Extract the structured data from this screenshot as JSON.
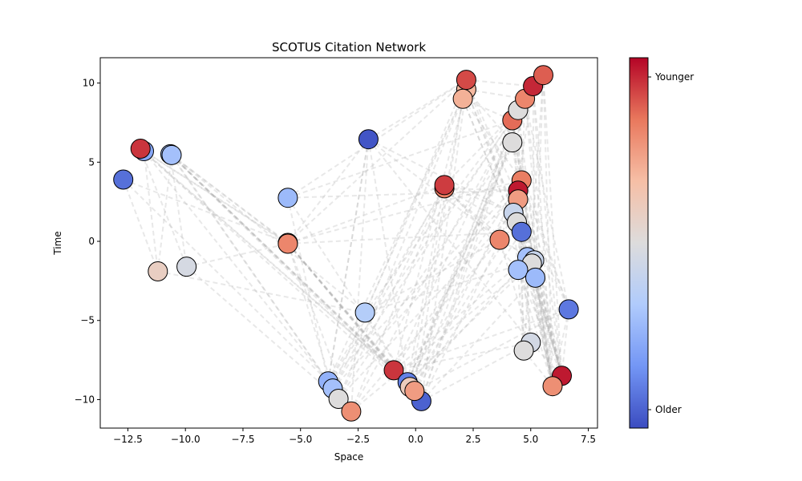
{
  "chart_data": {
    "type": "scatter",
    "title": "SCOTUS Citation Network",
    "xlabel": "Space",
    "ylabel": "Time",
    "xlim": [
      -13.7,
      7.9
    ],
    "ylim": [
      -11.8,
      11.6
    ],
    "x_ticks": [
      -12.5,
      -10.0,
      -7.5,
      -5.0,
      -2.5,
      0.0,
      2.5,
      5.0,
      7.5
    ],
    "x_tick_labels": [
      "−12.5",
      "−10.0",
      "−7.5",
      "−5.0",
      "−2.5",
      "0.0",
      "2.5",
      "5.0",
      "7.5"
    ],
    "y_ticks": [
      -10,
      -5,
      0,
      5,
      10
    ],
    "y_tick_labels": [
      "−10",
      "−5",
      "0",
      "5",
      "10"
    ],
    "grid": false,
    "colorbar": {
      "colormap": "coolwarm",
      "colors": [
        "#3b4cc0",
        "#7396f5",
        "#b0cbfc",
        "#dddcdc",
        "#f6bfa6",
        "#e9785d",
        "#b40426"
      ],
      "tick_labels": [
        "Younger",
        "Older"
      ]
    },
    "edge_color": "#b0b0b0",
    "nodes": [
      {
        "x": -12.7,
        "y": 3.9,
        "age": 0.08
      },
      {
        "x": -11.8,
        "y": 5.7,
        "age": 0.22
      },
      {
        "x": -11.95,
        "y": 5.85,
        "age": 0.93
      },
      {
        "x": -10.65,
        "y": 5.5,
        "age": 0.28
      },
      {
        "x": -10.6,
        "y": 5.45,
        "age": 0.3
      },
      {
        "x": -11.2,
        "y": -1.9,
        "age": 0.58
      },
      {
        "x": -9.95,
        "y": -1.6,
        "age": 0.47
      },
      {
        "x": -5.55,
        "y": 2.75,
        "age": 0.28
      },
      {
        "x": -5.55,
        "y": -0.1,
        "age": 0.6
      },
      {
        "x": -5.55,
        "y": -0.15,
        "age": 0.8
      },
      {
        "x": -2.05,
        "y": 6.45,
        "age": 0.02
      },
      {
        "x": -2.2,
        "y": -4.5,
        "age": 0.35
      },
      {
        "x": -3.8,
        "y": -8.85,
        "age": 0.25
      },
      {
        "x": -3.6,
        "y": -9.3,
        "age": 0.3
      },
      {
        "x": -3.35,
        "y": -9.95,
        "age": 0.5
      },
      {
        "x": -2.8,
        "y": -10.75,
        "age": 0.78
      },
      {
        "x": -0.95,
        "y": -8.15,
        "age": 0.93
      },
      {
        "x": -0.35,
        "y": -8.9,
        "age": 0.12
      },
      {
        "x": -0.25,
        "y": -9.2,
        "age": 0.6
      },
      {
        "x": 0.25,
        "y": -10.1,
        "age": 0.05
      },
      {
        "x": -0.05,
        "y": -9.45,
        "age": 0.75
      },
      {
        "x": 1.25,
        "y": 3.35,
        "age": 0.82
      },
      {
        "x": 1.25,
        "y": 3.55,
        "age": 0.92
      },
      {
        "x": 2.2,
        "y": 9.6,
        "age": 0.68
      },
      {
        "x": 2.2,
        "y": 10.2,
        "age": 0.9
      },
      {
        "x": 2.05,
        "y": 9.0,
        "age": 0.7
      },
      {
        "x": 3.65,
        "y": 0.1,
        "age": 0.8
      },
      {
        "x": 4.2,
        "y": 7.65,
        "age": 0.85
      },
      {
        "x": 4.2,
        "y": 6.25,
        "age": 0.5
      },
      {
        "x": 4.45,
        "y": 8.3,
        "age": 0.5
      },
      {
        "x": 4.75,
        "y": 9.0,
        "age": 0.8
      },
      {
        "x": 5.1,
        "y": 9.8,
        "age": 0.95
      },
      {
        "x": 5.55,
        "y": 10.5,
        "age": 0.87
      },
      {
        "x": 4.6,
        "y": 3.85,
        "age": 0.82
      },
      {
        "x": 4.45,
        "y": 3.2,
        "age": 0.97
      },
      {
        "x": 4.45,
        "y": 2.65,
        "age": 0.75
      },
      {
        "x": 4.25,
        "y": 1.8,
        "age": 0.42
      },
      {
        "x": 4.4,
        "y": 1.2,
        "age": 0.5
      },
      {
        "x": 4.6,
        "y": 0.6,
        "age": 0.08
      },
      {
        "x": 4.85,
        "y": -1.0,
        "age": 0.3
      },
      {
        "x": 5.15,
        "y": -1.2,
        "age": 0.42
      },
      {
        "x": 5.05,
        "y": -1.4,
        "age": 0.5
      },
      {
        "x": 4.45,
        "y": -1.8,
        "age": 0.3
      },
      {
        "x": 5.2,
        "y": -2.3,
        "age": 0.28
      },
      {
        "x": 6.65,
        "y": -4.3,
        "age": 0.1
      },
      {
        "x": 5.0,
        "y": -6.4,
        "age": 0.46
      },
      {
        "x": 4.7,
        "y": -6.9,
        "age": 0.5
      },
      {
        "x": 6.35,
        "y": -8.5,
        "age": 0.97
      },
      {
        "x": 5.95,
        "y": -9.15,
        "age": 0.78
      }
    ],
    "edges": [
      [
        1,
        8
      ],
      [
        1,
        12
      ],
      [
        1,
        17
      ],
      [
        1,
        5
      ],
      [
        2,
        9
      ],
      [
        2,
        16
      ],
      [
        2,
        19
      ],
      [
        2,
        6
      ],
      [
        3,
        8
      ],
      [
        3,
        11
      ],
      [
        3,
        16
      ],
      [
        3,
        17
      ],
      [
        3,
        19
      ],
      [
        3,
        13
      ],
      [
        3,
        6
      ],
      [
        4,
        9
      ],
      [
        4,
        12
      ],
      [
        4,
        17
      ],
      [
        4,
        20
      ],
      [
        4,
        5
      ],
      [
        0,
        8
      ],
      [
        0,
        5
      ],
      [
        0,
        12
      ],
      [
        5,
        11
      ],
      [
        6,
        9
      ],
      [
        6,
        14
      ],
      [
        7,
        17
      ],
      [
        7,
        24
      ],
      [
        7,
        27
      ],
      [
        7,
        12
      ],
      [
        7,
        34
      ],
      [
        8,
        16
      ],
      [
        8,
        17
      ],
      [
        8,
        18
      ],
      [
        8,
        19
      ],
      [
        8,
        13
      ],
      [
        8,
        10
      ],
      [
        8,
        33
      ],
      [
        8,
        24
      ],
      [
        9,
        19
      ],
      [
        9,
        20
      ],
      [
        9,
        15
      ],
      [
        9,
        22
      ],
      [
        9,
        38
      ],
      [
        10,
        12
      ],
      [
        10,
        15
      ],
      [
        10,
        17
      ],
      [
        10,
        26
      ],
      [
        10,
        36
      ],
      [
        10,
        45
      ],
      [
        10,
        24
      ],
      [
        11,
        17
      ],
      [
        11,
        26
      ],
      [
        11,
        30
      ],
      [
        11,
        40
      ],
      [
        11,
        23
      ],
      [
        12,
        23
      ],
      [
        12,
        27
      ],
      [
        12,
        33
      ],
      [
        12,
        21
      ],
      [
        12,
        10
      ],
      [
        13,
        24
      ],
      [
        13,
        29
      ],
      [
        13,
        34
      ],
      [
        13,
        22
      ],
      [
        14,
        25
      ],
      [
        14,
        28
      ],
      [
        14,
        36
      ],
      [
        14,
        21
      ],
      [
        15,
        21
      ],
      [
        15,
        26
      ],
      [
        15,
        31
      ],
      [
        15,
        40
      ],
      [
        16,
        23
      ],
      [
        16,
        27
      ],
      [
        16,
        33
      ],
      [
        16,
        39
      ],
      [
        16,
        45
      ],
      [
        16,
        44
      ],
      [
        17,
        22
      ],
      [
        17,
        28
      ],
      [
        17,
        35
      ],
      [
        17,
        41
      ],
      [
        17,
        30
      ],
      [
        17,
        32
      ],
      [
        18,
        24
      ],
      [
        18,
        29
      ],
      [
        18,
        37
      ],
      [
        18,
        42
      ],
      [
        18,
        31
      ],
      [
        19,
        23
      ],
      [
        19,
        30
      ],
      [
        19,
        36
      ],
      [
        19,
        43
      ],
      [
        19,
        45
      ],
      [
        19,
        27
      ],
      [
        20,
        25
      ],
      [
        20,
        31
      ],
      [
        20,
        38
      ],
      [
        20,
        44
      ],
      [
        20,
        33
      ],
      [
        21,
        26
      ],
      [
        21,
        34
      ],
      [
        21,
        38
      ],
      [
        21,
        41
      ],
      [
        22,
        29
      ],
      [
        22,
        36
      ],
      [
        22,
        42
      ],
      [
        23,
        30
      ],
      [
        23,
        37
      ],
      [
        23,
        40
      ],
      [
        23,
        28
      ],
      [
        24,
        31
      ],
      [
        24,
        35
      ],
      [
        24,
        41
      ],
      [
        25,
        27
      ],
      [
        25,
        33
      ],
      [
        25,
        39
      ],
      [
        25,
        43
      ],
      [
        26,
        34
      ],
      [
        26,
        40
      ],
      [
        26,
        45
      ],
      [
        27,
        47
      ],
      [
        27,
        48
      ],
      [
        27,
        43
      ],
      [
        27,
        45
      ],
      [
        28,
        47
      ],
      [
        28,
        44
      ],
      [
        28,
        39
      ],
      [
        29,
        48
      ],
      [
        29,
        46
      ],
      [
        29,
        41
      ],
      [
        30,
        47
      ],
      [
        30,
        48
      ],
      [
        30,
        42
      ],
      [
        30,
        44
      ],
      [
        31,
        47
      ],
      [
        31,
        48
      ],
      [
        31,
        40
      ],
      [
        31,
        36
      ],
      [
        32,
        47
      ],
      [
        32,
        48
      ],
      [
        32,
        46
      ],
      [
        32,
        43
      ],
      [
        33,
        48
      ],
      [
        33,
        44
      ],
      [
        33,
        45
      ],
      [
        34,
        47
      ],
      [
        34,
        46
      ],
      [
        34,
        43
      ],
      [
        35,
        48
      ],
      [
        35,
        44
      ],
      [
        35,
        47
      ],
      [
        36,
        47
      ],
      [
        36,
        48
      ],
      [
        36,
        46
      ],
      [
        37,
        47
      ],
      [
        37,
        48
      ],
      [
        37,
        45
      ],
      [
        38,
        47
      ],
      [
        38,
        48
      ],
      [
        39,
        47
      ],
      [
        39,
        48
      ],
      [
        40,
        47
      ],
      [
        40,
        48
      ],
      [
        41,
        47
      ],
      [
        41,
        48
      ],
      [
        42,
        47
      ],
      [
        42,
        48
      ],
      [
        43,
        47
      ],
      [
        43,
        48
      ],
      [
        44,
        47
      ],
      [
        44,
        48
      ],
      [
        45,
        47
      ],
      [
        46,
        48
      ]
    ]
  }
}
